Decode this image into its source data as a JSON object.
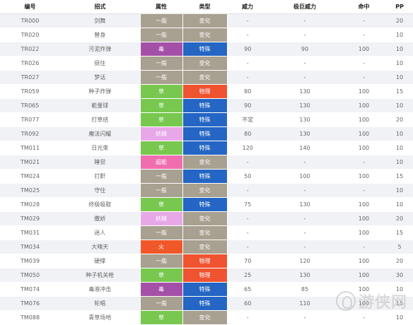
{
  "colors": {
    "type_normal": "#a8a090",
    "type_poison": "#a550a8",
    "type_grass": "#78c850",
    "type_fairy": "#e8a8e8",
    "type_psychic": "#f06eb0",
    "type_fire": "#f0582a",
    "cat_status": "#a8a090",
    "cat_special": "#2566c4",
    "cat_physical": "#ef5330"
  },
  "table": {
    "headers": [
      "编号",
      "招式",
      "属性",
      "类型",
      "威力",
      "极巨威力",
      "命中",
      "PP"
    ],
    "rows": [
      {
        "id": "TR000",
        "move": "剑舞",
        "attr": "一般",
        "attr_key": "normal",
        "cat": "变化",
        "cat_key": "status",
        "power": "-",
        "max_power": "-",
        "accuracy": "-",
        "pp": "20"
      },
      {
        "id": "TR020",
        "move": "替身",
        "attr": "一般",
        "attr_key": "normal",
        "cat": "变化",
        "cat_key": "status",
        "power": "-",
        "max_power": "-",
        "accuracy": "-",
        "pp": "10"
      },
      {
        "id": "TR022",
        "move": "污泥炸弹",
        "attr": "毒",
        "attr_key": "poison",
        "cat": "特殊",
        "cat_key": "special",
        "power": "90",
        "max_power": "90",
        "accuracy": "100",
        "pp": "10"
      },
      {
        "id": "TR026",
        "move": "挺住",
        "attr": "一般",
        "attr_key": "normal",
        "cat": "变化",
        "cat_key": "status",
        "power": "-",
        "max_power": "-",
        "accuracy": "-",
        "pp": "10"
      },
      {
        "id": "TR027",
        "move": "梦话",
        "attr": "一般",
        "attr_key": "normal",
        "cat": "变化",
        "cat_key": "status",
        "power": "-",
        "max_power": "-",
        "accuracy": "-",
        "pp": "10"
      },
      {
        "id": "TR059",
        "move": "种子炸弹",
        "attr": "草",
        "attr_key": "grass",
        "cat": "物理",
        "cat_key": "physical",
        "power": "80",
        "max_power": "130",
        "accuracy": "100",
        "pp": "15"
      },
      {
        "id": "TR065",
        "move": "能量球",
        "attr": "草",
        "attr_key": "grass",
        "cat": "特殊",
        "cat_key": "special",
        "power": "90",
        "max_power": "130",
        "accuracy": "100",
        "pp": "10"
      },
      {
        "id": "TR077",
        "move": "打草结",
        "attr": "草",
        "attr_key": "grass",
        "cat": "特殊",
        "cat_key": "special",
        "power": "不定",
        "max_power": "130",
        "accuracy": "100",
        "pp": "20"
      },
      {
        "id": "TR092",
        "move": "魔法闪耀",
        "attr": "妖精",
        "attr_key": "fairy",
        "cat": "特殊",
        "cat_key": "special",
        "power": "80",
        "max_power": "130",
        "accuracy": "100",
        "pp": "10"
      },
      {
        "id": "TM011",
        "move": "日光束",
        "attr": "草",
        "attr_key": "grass",
        "cat": "特殊",
        "cat_key": "special",
        "power": "120",
        "max_power": "140",
        "accuracy": "100",
        "pp": "10"
      },
      {
        "id": "TM021",
        "move": "睡觉",
        "attr": "超能",
        "attr_key": "psychic",
        "cat": "变化",
        "cat_key": "status",
        "power": "-",
        "max_power": "-",
        "accuracy": "-",
        "pp": "10"
      },
      {
        "id": "TM024",
        "move": "打鼾",
        "attr": "一般",
        "attr_key": "normal",
        "cat": "特殊",
        "cat_key": "special",
        "power": "50",
        "max_power": "100",
        "accuracy": "100",
        "pp": "15"
      },
      {
        "id": "TM025",
        "move": "守住",
        "attr": "一般",
        "attr_key": "normal",
        "cat": "变化",
        "cat_key": "status",
        "power": "-",
        "max_power": "-",
        "accuracy": "-",
        "pp": "10"
      },
      {
        "id": "TM028",
        "move": "终极吸取",
        "attr": "草",
        "attr_key": "grass",
        "cat": "特殊",
        "cat_key": "special",
        "power": "75",
        "max_power": "130",
        "accuracy": "100",
        "pp": "10"
      },
      {
        "id": "TM029",
        "move": "撒娇",
        "attr": "妖精",
        "attr_key": "fairy",
        "cat": "变化",
        "cat_key": "status",
        "power": "-",
        "max_power": "-",
        "accuracy": "100",
        "pp": "20"
      },
      {
        "id": "TM031",
        "move": "迷人",
        "attr": "一般",
        "attr_key": "normal",
        "cat": "变化",
        "cat_key": "status",
        "power": "-",
        "max_power": "-",
        "accuracy": "100",
        "pp": "15"
      },
      {
        "id": "TM034",
        "move": "大晴天",
        "attr": "火",
        "attr_key": "fire",
        "cat": "变化",
        "cat_key": "status",
        "power": "-",
        "max_power": "-",
        "accuracy": "-",
        "pp": "5"
      },
      {
        "id": "TM039",
        "move": "硬撑",
        "attr": "一般",
        "attr_key": "normal",
        "cat": "物理",
        "cat_key": "physical",
        "power": "70",
        "max_power": "120",
        "accuracy": "100",
        "pp": "20"
      },
      {
        "id": "TM050",
        "move": "种子机关枪",
        "attr": "草",
        "attr_key": "grass",
        "cat": "物理",
        "cat_key": "physical",
        "power": "25",
        "max_power": "130",
        "accuracy": "100",
        "pp": "30"
      },
      {
        "id": "TM074",
        "move": "毒液冲击",
        "attr": "毒",
        "attr_key": "poison",
        "cat": "特殊",
        "cat_key": "special",
        "power": "65",
        "max_power": "85",
        "accuracy": "100",
        "pp": "10"
      },
      {
        "id": "TM076",
        "move": "轮唱",
        "attr": "一般",
        "attr_key": "normal",
        "cat": "特殊",
        "cat_key": "special",
        "power": "60",
        "max_power": "110",
        "accuracy": "100",
        "pp": "15"
      },
      {
        "id": "TM088",
        "move": "青草场地",
        "attr": "草",
        "attr_key": "grass",
        "cat": "变化",
        "cat_key": "status",
        "power": "-",
        "max_power": "-",
        "accuracy": "-",
        "pp": "10"
      }
    ]
  },
  "watermark": {
    "text": "游侠网",
    "icon": "youxia-logo-icon"
  }
}
